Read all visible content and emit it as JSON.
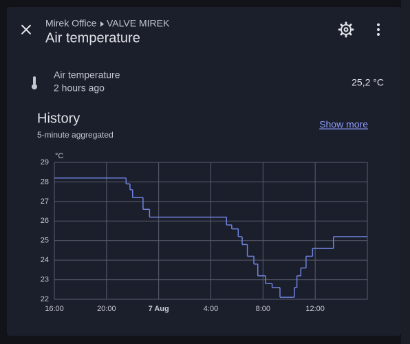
{
  "header": {
    "area": "Mirek Office",
    "device": "VALVE MIREK",
    "title": "Air temperature"
  },
  "entity": {
    "name": "Air temperature",
    "last_changed": "2 hours ago",
    "state": "25,2 °C"
  },
  "history": {
    "title": "History",
    "subtitle": "5-minute aggregated",
    "link": "Show more"
  },
  "chart_data": {
    "type": "line",
    "step": true,
    "y_unit": "°C",
    "color": "#6f83e0",
    "grid": true,
    "x": [
      0,
      5.5,
      5.8,
      6.0,
      6.8,
      7.3,
      13.2,
      13.6,
      14.1,
      14.4,
      14.8,
      15.3,
      15.6,
      16.2,
      16.7,
      17.3,
      18.4,
      18.6,
      18.9,
      19.3,
      19.8,
      21.4,
      24
    ],
    "values": [
      28.2,
      27.9,
      27.6,
      27.2,
      26.6,
      26.2,
      25.8,
      25.6,
      25.2,
      24.8,
      24.2,
      23.8,
      23.2,
      22.8,
      22.6,
      22.1,
      22.6,
      23.2,
      23.6,
      24.2,
      24.6,
      25.2,
      25.2
    ],
    "xlim": [
      0,
      24
    ],
    "xticks": [
      {
        "value": 0,
        "label": "16:00"
      },
      {
        "value": 4,
        "label": "20:00"
      },
      {
        "value": 8,
        "label": "7 Aug"
      },
      {
        "value": 12,
        "label": "4:00"
      },
      {
        "value": 16,
        "label": "8:00"
      },
      {
        "value": 20,
        "label": "12:00"
      }
    ],
    "ylim": [
      22,
      29
    ],
    "yticks": [
      22,
      23,
      24,
      25,
      26,
      27,
      28,
      29
    ]
  }
}
